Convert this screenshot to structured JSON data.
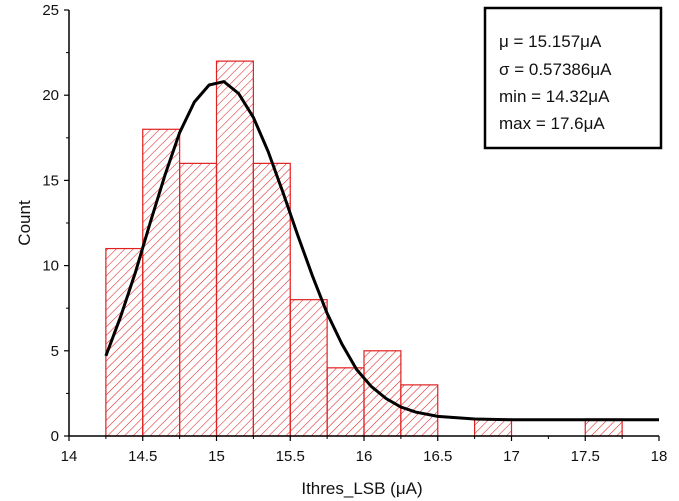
{
  "chart_data": {
    "type": "bar",
    "subtype": "histogram",
    "xlabel": "Ithres_LSB (μA)",
    "ylabel": "Count",
    "xlim": [
      14,
      18
    ],
    "ylim": [
      0,
      25
    ],
    "x_ticks": [
      "14",
      "14.5",
      "15",
      "15.5",
      "16",
      "16.5",
      "17",
      "17.5",
      "18"
    ],
    "y_ticks": [
      "0",
      "5",
      "10",
      "15",
      "20",
      "25"
    ],
    "bin_width": 0.25,
    "bins": [
      {
        "x0": 14.25,
        "x1": 14.5,
        "count": 11
      },
      {
        "x0": 14.5,
        "x1": 14.75,
        "count": 18
      },
      {
        "x0": 14.75,
        "x1": 15.0,
        "count": 16
      },
      {
        "x0": 15.0,
        "x1": 15.25,
        "count": 22
      },
      {
        "x0": 15.25,
        "x1": 15.5,
        "count": 16
      },
      {
        "x0": 15.5,
        "x1": 15.75,
        "count": 8
      },
      {
        "x0": 15.75,
        "x1": 16.0,
        "count": 4
      },
      {
        "x0": 16.0,
        "x1": 16.25,
        "count": 5
      },
      {
        "x0": 16.25,
        "x1": 16.5,
        "count": 3
      },
      {
        "x0": 16.75,
        "x1": 17.0,
        "count": 1
      },
      {
        "x0": 17.5,
        "x1": 17.75,
        "count": 1
      }
    ],
    "fit_curve": {
      "x": [
        14.25,
        14.35,
        14.45,
        14.55,
        14.65,
        14.75,
        14.85,
        14.95,
        15.05,
        15.15,
        15.25,
        15.35,
        15.45,
        15.55,
        15.65,
        15.75,
        15.85,
        15.95,
        16.05,
        16.15,
        16.25,
        16.35,
        16.5,
        16.75,
        17.0,
        17.5,
        18.0
      ],
      "y": [
        4.7,
        7.0,
        9.6,
        12.5,
        15.3,
        17.8,
        19.6,
        20.6,
        20.8,
        20.1,
        18.7,
        16.7,
        14.3,
        11.8,
        9.4,
        7.2,
        5.4,
        3.9,
        2.9,
        2.2,
        1.7,
        1.4,
        1.15,
        1.0,
        0.95,
        0.95,
        0.95
      ]
    },
    "bar_color": "#e02020",
    "bar_fill": "hatched",
    "curve_color": "#000000",
    "legend_position": "top-right",
    "stats": [
      "μ = 15.157μA",
      "σ = 0.57386μA",
      "min = 14.32μA",
      "max = 17.6μA"
    ]
  }
}
